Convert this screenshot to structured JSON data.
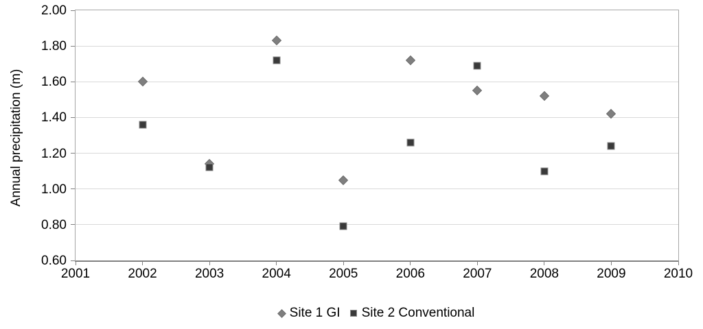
{
  "chart_data": {
    "type": "scatter",
    "title": "",
    "xlabel": "",
    "ylabel": "Annual precipitation (m)",
    "xlim": [
      2001,
      2010
    ],
    "ylim": [
      0.6,
      2.0
    ],
    "x_ticks": [
      2001,
      2002,
      2003,
      2004,
      2005,
      2006,
      2007,
      2008,
      2009,
      2010
    ],
    "y_ticks": [
      2.0,
      1.8,
      1.6,
      1.4,
      1.2,
      1.0,
      0.8,
      0.6
    ],
    "y_tick_labels": [
      "2.00",
      "1.80",
      "1.60",
      "1.40",
      "1.20",
      "1.00",
      "0.80",
      "0.60"
    ],
    "grid": "horizontal-only",
    "legend_position": "bottom-center",
    "x": [
      2002,
      2003,
      2004,
      2005,
      2006,
      2007,
      2008,
      2009
    ],
    "series": [
      {
        "name": "Site 1 GI",
        "marker": "diamond",
        "color": "#7f7f7f",
        "border_color": "#6e6e6e",
        "values": [
          1.6,
          1.14,
          1.83,
          1.05,
          1.72,
          1.55,
          1.52,
          1.42
        ]
      },
      {
        "name": "Site 2 Conventional",
        "marker": "square",
        "color": "#3a3a3a",
        "border_color": "#8c8c8c",
        "values": [
          1.36,
          1.12,
          1.72,
          0.79,
          1.26,
          1.69,
          1.1,
          1.24
        ]
      }
    ],
    "colors": {
      "gridline": "#d9d9d9",
      "plot_border": "#a6a6a6",
      "axis_line": "#808080",
      "tick": "#808080",
      "text": "#000000",
      "background": "#ffffff"
    }
  }
}
